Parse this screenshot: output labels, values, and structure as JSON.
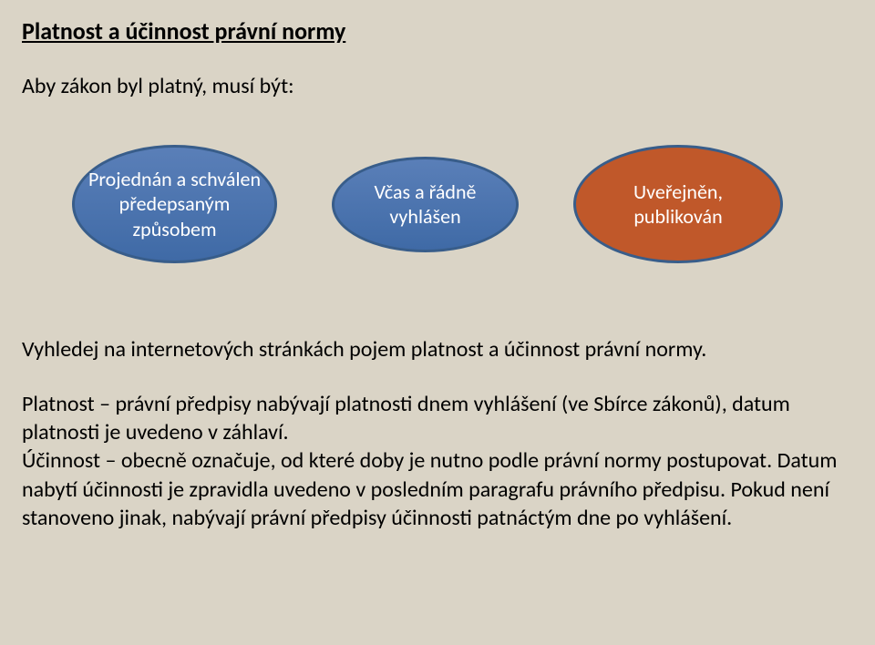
{
  "title": "Platnost a účinnost právní normy",
  "subtitle": "Aby zákon byl platný, musí být:",
  "ellipses": [
    {
      "text": "Projednán a schválen předepsaným způsobem",
      "bg": "blue"
    },
    {
      "text": "Včas a řádně vyhlášen",
      "bg": "blue"
    },
    {
      "text": "Uveřejněn, publikován",
      "bg": "orange"
    }
  ],
  "styling": {
    "page_bg": "#dad4c6",
    "blue_ellipse_fill_top": "#5a7fb8",
    "blue_ellipse_fill_bottom": "#3f6aa6",
    "orange_ellipse_fill": "#c0582a",
    "ellipse_border": "#385d8a",
    "title_fontsize": 26,
    "body_fontsize": 24,
    "ellipse_fontsize": 22
  },
  "search_line": "Vyhledej na internetových stránkách pojem platnost a účinnost právní normy.",
  "body": "Platnost – právní předpisy nabývají platnosti dnem vyhlášení (ve Sbírce zákonů), datum platnosti je uvedeno v záhlaví.\nÚčinnost – obecně označuje, od které doby je nutno podle právní normy postupovat. Datum nabytí účinnosti je zpravidla uvedeno v posledním paragrafu právního předpisu. Pokud není stanoveno jinak, nabývají právní předpisy účinnosti patnáctým dne po vyhlášení."
}
